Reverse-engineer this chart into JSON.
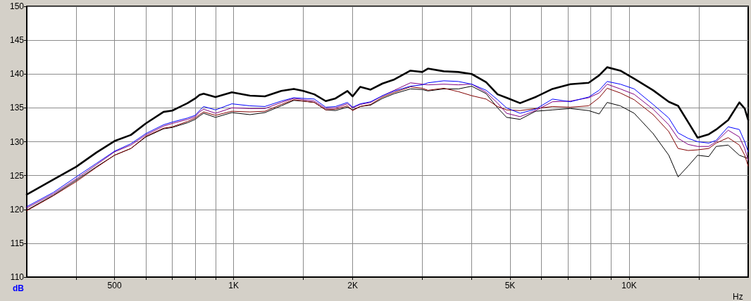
{
  "chart_data": {
    "type": "line",
    "xlabel": "Hz",
    "ylabel": "dB",
    "log": "x",
    "grid": true,
    "marker": "none",
    "line_style": "solid",
    "xlim": [
      300,
      20000
    ],
    "ylim": [
      110,
      150
    ],
    "xticks": [
      {
        "value": 400,
        "label": null
      },
      500,
      {
        "value": 600,
        "label": null
      },
      {
        "value": 700,
        "label": null
      },
      {
        "value": 800,
        "label": null
      },
      {
        "value": 900,
        "label": null
      },
      {
        "value": 1000,
        "label": "1K"
      },
      {
        "value": 1500,
        "label": null
      },
      {
        "value": 2000,
        "label": "2K"
      },
      {
        "value": 3000,
        "label": null
      },
      {
        "value": 4000,
        "label": null
      },
      {
        "value": 5000,
        "label": "5K"
      },
      {
        "value": 6000,
        "label": null
      },
      {
        "value": 7000,
        "label": null
      },
      {
        "value": 8000,
        "label": null
      },
      {
        "value": 9000,
        "label": null
      },
      {
        "value": 10000,
        "label": "10K"
      },
      {
        "value": 15000,
        "label": null
      }
    ],
    "yticks": [
      110,
      115,
      120,
      125,
      130,
      135,
      140,
      145,
      150
    ],
    "x": [
      300,
      350,
      400,
      450,
      500,
      550,
      600,
      665,
      700,
      765,
      800,
      820,
      840,
      900,
      990,
      1100,
      1200,
      1320,
      1420,
      1500,
      1600,
      1710,
      1810,
      1940,
      2000,
      2090,
      2220,
      2380,
      2550,
      2800,
      3000,
      3100,
      3400,
      3700,
      4000,
      4350,
      4650,
      4900,
      5300,
      5800,
      6400,
      7100,
      7900,
      8400,
      8800,
      9500,
      10300,
      11500,
      12600,
      13300,
      14100,
      14900,
      15900,
      16600,
      17800,
      19000,
      19600,
      20000
    ],
    "series": [
      {
        "color": "#000000",
        "values": [
          122.2,
          124.4,
          126.3,
          128.4,
          130.1,
          131.0,
          132.7,
          134.4,
          134.6,
          135.7,
          136.4,
          136.9,
          137.1,
          136.6,
          137.3,
          136.8,
          136.7,
          137.5,
          137.8,
          137.5,
          137.0,
          136.0,
          136.4,
          137.5,
          136.7,
          138.1,
          137.7,
          138.6,
          139.2,
          140.5,
          140.3,
          140.8,
          140.4,
          140.3,
          140.0,
          138.8,
          137.0,
          136.5,
          135.7,
          136.6,
          137.8,
          138.5,
          138.7,
          139.8,
          141.0,
          140.5,
          139.3,
          137.6,
          135.9,
          135.3,
          132.9,
          130.6,
          131.1,
          131.8,
          133.2,
          135.8,
          134.9,
          133.2
        ]
      },
      {
        "color": "#0000ff",
        "values": [
          120.4,
          122.5,
          124.8,
          126.8,
          128.6,
          129.7,
          131.2,
          132.5,
          132.9,
          133.5,
          133.9,
          134.6,
          135.2,
          134.7,
          135.6,
          135.3,
          135.2,
          136.0,
          136.5,
          136.4,
          136.3,
          135.1,
          135.2,
          135.8,
          135.1,
          135.6,
          135.9,
          136.8,
          137.5,
          138.2,
          138.4,
          138.7,
          139.0,
          138.9,
          138.5,
          137.6,
          136.2,
          135.0,
          134.2,
          134.8,
          136.3,
          135.9,
          136.6,
          137.6,
          138.9,
          138.5,
          137.8,
          135.5,
          133.5,
          131.3,
          130.5,
          130.0,
          129.8,
          130.2,
          132.2,
          131.8,
          130.0,
          128.5
        ]
      },
      {
        "color": "#800080",
        "values": [
          120.2,
          122.3,
          124.5,
          126.6,
          128.5,
          129.5,
          131.0,
          132.3,
          132.7,
          133.3,
          133.7,
          134.4,
          134.8,
          134.2,
          135.0,
          134.9,
          134.9,
          135.8,
          136.4,
          136.2,
          136.0,
          134.9,
          135.0,
          135.6,
          135.0,
          135.5,
          135.8,
          136.8,
          137.6,
          138.7,
          138.5,
          138.4,
          138.5,
          138.4,
          138.5,
          137.3,
          135.7,
          134.2,
          133.7,
          134.6,
          135.9,
          136.0,
          136.5,
          137.2,
          138.5,
          137.8,
          137.0,
          134.8,
          132.5,
          130.5,
          129.6,
          129.3,
          129.3,
          130.0,
          131.7,
          130.7,
          129.0,
          127.3
        ]
      },
      {
        "color": "#800000",
        "values": [
          119.8,
          122.0,
          124.1,
          126.2,
          128.0,
          129.0,
          130.8,
          132.0,
          132.2,
          133.0,
          133.5,
          134.0,
          134.4,
          133.9,
          134.5,
          134.4,
          134.5,
          135.5,
          136.2,
          136.0,
          135.8,
          134.7,
          134.8,
          135.3,
          134.6,
          135.2,
          135.5,
          136.6,
          137.3,
          138.1,
          137.9,
          137.6,
          137.9,
          137.4,
          136.8,
          136.3,
          135.2,
          134.7,
          134.6,
          134.9,
          135.2,
          135.1,
          135.3,
          136.5,
          137.9,
          137.2,
          136.2,
          134.0,
          131.5,
          129.0,
          128.7,
          128.8,
          129.0,
          129.8,
          130.6,
          129.5,
          128.0,
          126.4
        ]
      },
      {
        "color": "#000000",
        "values": [
          119.9,
          122.1,
          124.3,
          126.3,
          128.0,
          129.0,
          130.7,
          131.9,
          132.1,
          132.8,
          133.3,
          133.8,
          134.2,
          133.6,
          134.3,
          134.0,
          134.3,
          135.3,
          136.1,
          136.0,
          135.8,
          134.7,
          134.6,
          135.1,
          134.7,
          135.2,
          135.4,
          136.4,
          137.1,
          137.8,
          137.7,
          137.5,
          137.8,
          137.8,
          138.2,
          137.1,
          135.0,
          133.6,
          133.3,
          134.5,
          134.7,
          134.9,
          134.6,
          134.1,
          135.8,
          135.3,
          134.2,
          131.2,
          128.0,
          124.8,
          126.4,
          128.0,
          127.8,
          129.3,
          129.5,
          128.0,
          127.7,
          127.5
        ]
      }
    ]
  }
}
